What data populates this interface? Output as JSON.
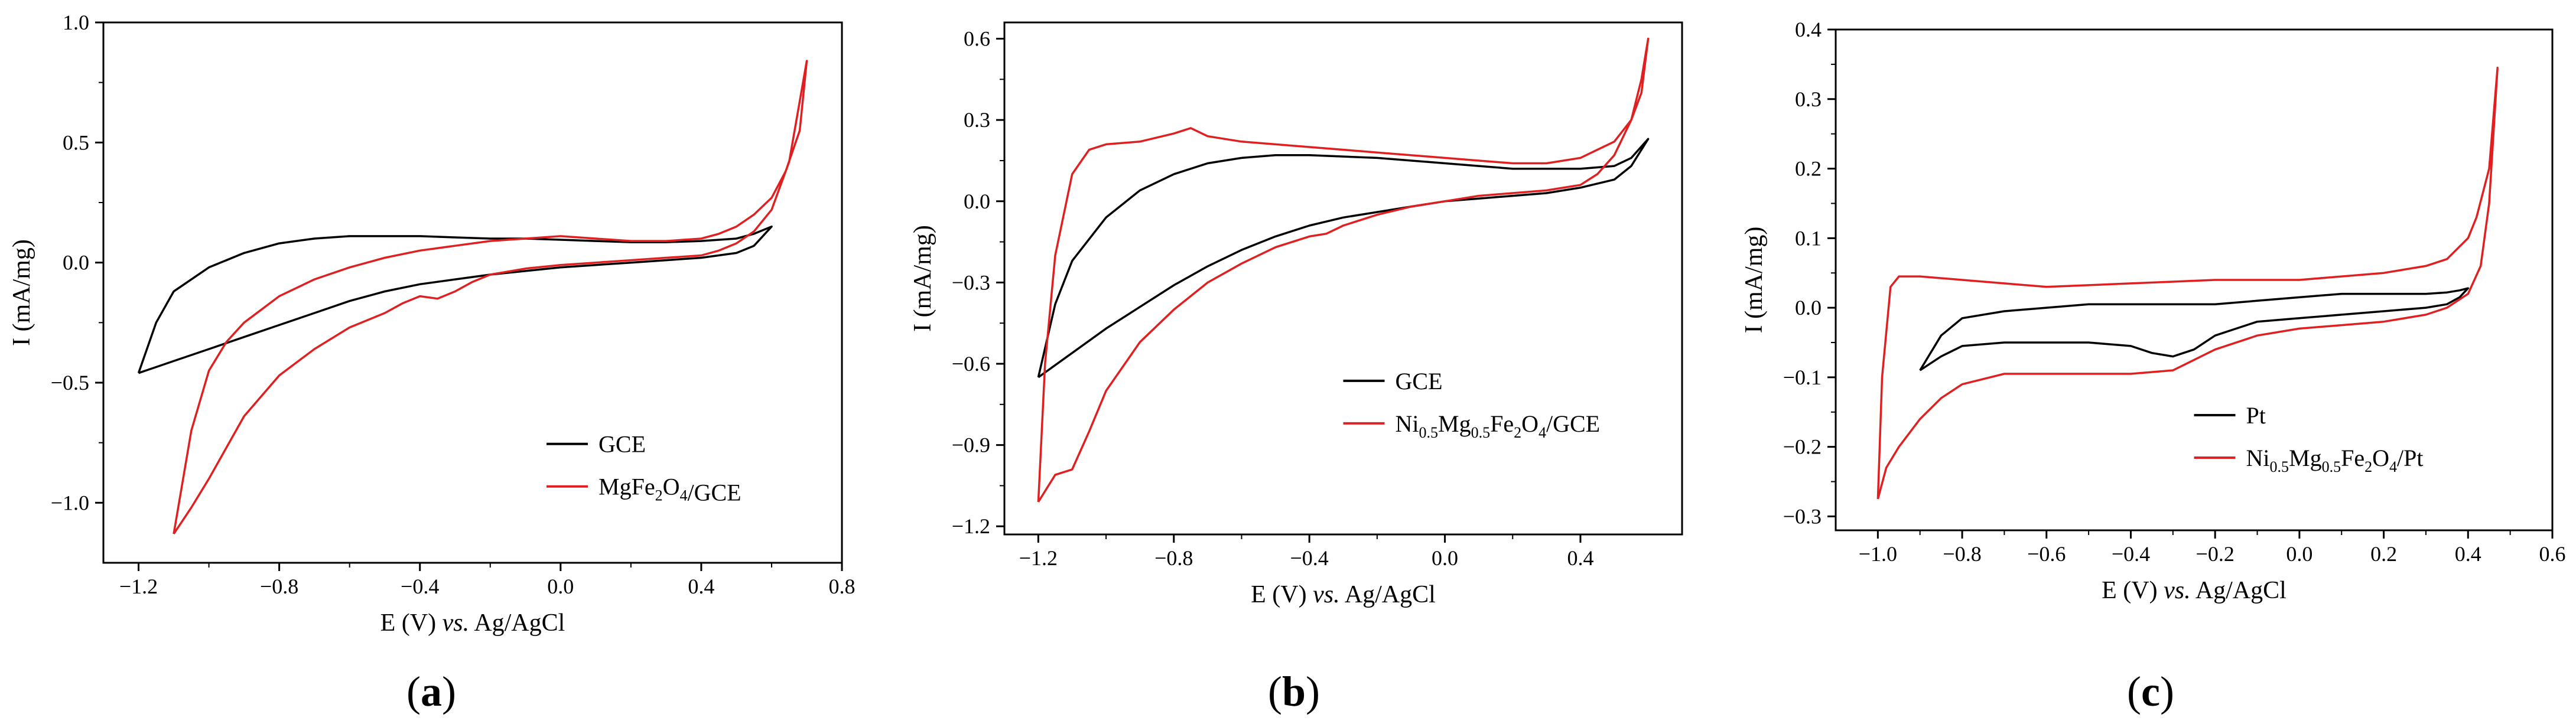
{
  "figure": {
    "colors": {
      "background": "#ffffff",
      "axis": "#000000",
      "GCE": "#000000",
      "modified": "#e02020"
    }
  },
  "chart_data": [
    {
      "type": "line",
      "panel_label": "a",
      "xlabel": "E (V) vs. Ag/AgCl",
      "ylabel": "I (mA/mg)",
      "xlim": [
        -1.3,
        0.8
      ],
      "ylim": [
        -1.25,
        1.0
      ],
      "xticks": [
        -1.2,
        -0.8,
        -0.4,
        0.0,
        0.4,
        0.8
      ],
      "xtick_labels": [
        "−1.2",
        "−0.8",
        "−0.4",
        "0.0",
        "0.4",
        "0.8"
      ],
      "yticks": [
        -1.0,
        -0.5,
        0.0,
        0.5,
        1.0
      ],
      "ytick_labels": [
        "−1.0",
        "−0.5",
        "0.0",
        "0.5",
        "1.0"
      ],
      "legend_position": "lower-right",
      "series": [
        {
          "name": "GCE",
          "legend": {
            "base": "GCE"
          },
          "color": "#000000",
          "x": [
            -1.2,
            -1.1,
            -1.0,
            -0.9,
            -0.8,
            -0.7,
            -0.6,
            -0.5,
            -0.4,
            -0.3,
            -0.2,
            -0.1,
            0.0,
            0.1,
            0.2,
            0.3,
            0.4,
            0.5,
            0.55,
            0.6,
            0.6,
            0.55,
            0.5,
            0.4,
            0.3,
            0.2,
            0.1,
            0.0,
            -0.1,
            -0.2,
            -0.3,
            -0.4,
            -0.5,
            -0.6,
            -0.7,
            -0.8,
            -0.9,
            -1.0,
            -1.1,
            -1.15,
            -1.2
          ],
          "y": [
            -0.46,
            -0.41,
            -0.36,
            -0.31,
            -0.26,
            -0.21,
            -0.16,
            -0.12,
            -0.09,
            -0.07,
            -0.05,
            -0.035,
            -0.02,
            -0.01,
            0.0,
            0.01,
            0.02,
            0.04,
            0.07,
            0.15,
            0.15,
            0.12,
            0.1,
            0.09,
            0.085,
            0.085,
            0.09,
            0.095,
            0.1,
            0.1,
            0.105,
            0.11,
            0.11,
            0.11,
            0.1,
            0.08,
            0.04,
            -0.02,
            -0.12,
            -0.25,
            -0.46
          ]
        },
        {
          "name": "MgFe2O4/GCE",
          "legend": {
            "base": "MgFe",
            "sub1": "2",
            "mid": "O",
            "sub2": "4",
            "rest": "/GCE"
          },
          "color": "#e02020",
          "x": [
            -1.1,
            -1.05,
            -1.0,
            -0.95,
            -0.9,
            -0.8,
            -0.7,
            -0.6,
            -0.5,
            -0.45,
            -0.4,
            -0.35,
            -0.3,
            -0.25,
            -0.2,
            -0.1,
            0.0,
            0.1,
            0.2,
            0.3,
            0.4,
            0.45,
            0.5,
            0.55,
            0.6,
            0.65,
            0.7,
            0.68,
            0.64,
            0.6,
            0.55,
            0.5,
            0.45,
            0.4,
            0.3,
            0.2,
            0.1,
            0.0,
            -0.1,
            -0.2,
            -0.3,
            -0.4,
            -0.5,
            -0.6,
            -0.7,
            -0.8,
            -0.9,
            -0.95,
            -1.0,
            -1.05,
            -1.1
          ],
          "y": [
            -1.13,
            -1.02,
            -0.9,
            -0.77,
            -0.64,
            -0.47,
            -0.36,
            -0.27,
            -0.21,
            -0.17,
            -0.14,
            -0.15,
            -0.12,
            -0.08,
            -0.05,
            -0.025,
            -0.01,
            0.0,
            0.01,
            0.02,
            0.03,
            0.05,
            0.08,
            0.13,
            0.22,
            0.42,
            0.84,
            0.55,
            0.38,
            0.27,
            0.2,
            0.15,
            0.12,
            0.1,
            0.09,
            0.09,
            0.1,
            0.11,
            0.1,
            0.09,
            0.07,
            0.05,
            0.02,
            -0.02,
            -0.07,
            -0.14,
            -0.25,
            -0.33,
            -0.45,
            -0.7,
            -1.13
          ]
        }
      ]
    },
    {
      "type": "line",
      "panel_label": "b",
      "xlabel": "E (V) vs. Ag/AgCl",
      "ylabel": "I (mA/mg)",
      "xlim": [
        -1.3,
        0.7
      ],
      "ylim": [
        -1.23,
        0.66
      ],
      "xticks": [
        -1.2,
        -0.8,
        -0.4,
        0.0,
        0.4
      ],
      "xtick_labels": [
        "−1.2",
        "−0.8",
        "−0.4",
        "0.0",
        "0.4"
      ],
      "yticks": [
        -1.2,
        -0.9,
        -0.6,
        -0.3,
        0.0,
        0.3,
        0.6
      ],
      "ytick_labels": [
        "−1.2",
        "−0.9",
        "−0.6",
        "−0.3",
        "0.0",
        "0.3",
        "0.6"
      ],
      "legend_position": "lower-right",
      "series": [
        {
          "name": "GCE",
          "legend": {
            "base": "GCE"
          },
          "color": "#000000",
          "x": [
            -1.2,
            -1.1,
            -1.0,
            -0.9,
            -0.8,
            -0.7,
            -0.6,
            -0.5,
            -0.4,
            -0.3,
            -0.2,
            -0.1,
            0.0,
            0.1,
            0.2,
            0.3,
            0.4,
            0.5,
            0.55,
            0.6,
            0.6,
            0.55,
            0.5,
            0.4,
            0.3,
            0.2,
            0.1,
            0.0,
            -0.2,
            -0.4,
            -0.5,
            -0.6,
            -0.7,
            -0.8,
            -0.9,
            -1.0,
            -1.1,
            -1.15,
            -1.2
          ],
          "y": [
            -0.65,
            -0.56,
            -0.47,
            -0.39,
            -0.31,
            -0.24,
            -0.18,
            -0.13,
            -0.09,
            -0.06,
            -0.04,
            -0.02,
            0.0,
            0.01,
            0.02,
            0.03,
            0.05,
            0.08,
            0.13,
            0.23,
            0.23,
            0.16,
            0.13,
            0.12,
            0.12,
            0.12,
            0.13,
            0.14,
            0.16,
            0.17,
            0.17,
            0.16,
            0.14,
            0.1,
            0.04,
            -0.06,
            -0.22,
            -0.38,
            -0.65
          ]
        },
        {
          "name": "Ni0.5Mg0.5Fe2O4/GCE",
          "legend": {
            "base": "Ni",
            "sub1": "0.5",
            "mid": "Mg",
            "sub2": "0.5",
            "mid2": "Fe",
            "sub3": "2",
            "mid3": "O",
            "sub4": "4",
            "rest": "/GCE"
          },
          "color": "#e02020",
          "x": [
            -1.2,
            -1.15,
            -1.1,
            -1.05,
            -1.0,
            -0.9,
            -0.8,
            -0.7,
            -0.6,
            -0.5,
            -0.4,
            -0.35,
            -0.3,
            -0.2,
            -0.1,
            0.0,
            0.1,
            0.2,
            0.3,
            0.4,
            0.45,
            0.5,
            0.55,
            0.58,
            0.6,
            0.58,
            0.55,
            0.5,
            0.4,
            0.3,
            0.2,
            0.1,
            0.0,
            -0.2,
            -0.4,
            -0.6,
            -0.7,
            -0.75,
            -0.8,
            -0.9,
            -1.0,
            -1.05,
            -1.1,
            -1.15,
            -1.18,
            -1.2
          ],
          "y": [
            -1.11,
            -1.01,
            -0.99,
            -0.85,
            -0.7,
            -0.52,
            -0.4,
            -0.3,
            -0.23,
            -0.17,
            -0.13,
            -0.12,
            -0.09,
            -0.05,
            -0.02,
            0.0,
            0.02,
            0.03,
            0.04,
            0.06,
            0.1,
            0.17,
            0.3,
            0.45,
            0.6,
            0.4,
            0.3,
            0.22,
            0.16,
            0.14,
            0.14,
            0.15,
            0.16,
            0.18,
            0.2,
            0.22,
            0.24,
            0.27,
            0.25,
            0.22,
            0.21,
            0.19,
            0.1,
            -0.2,
            -0.6,
            -1.11
          ]
        }
      ]
    },
    {
      "type": "line",
      "panel_label": "c",
      "xlabel": "E (V) vs. Ag/AgCl",
      "ylabel": "I (mA/mg)",
      "xlim": [
        -1.1,
        0.6
      ],
      "ylim": [
        -0.32,
        0.4
      ],
      "xticks": [
        -1.0,
        -0.8,
        -0.6,
        -0.4,
        -0.2,
        0.0,
        0.2,
        0.4,
        0.6
      ],
      "xtick_labels": [
        "−1.0",
        "−0.8",
        "−0.6",
        "−0.4",
        "−0.2",
        "0.0",
        "0.2",
        "0.4",
        "0.6"
      ],
      "yticks": [
        -0.3,
        -0.2,
        -0.1,
        0.0,
        0.1,
        0.2,
        0.3,
        0.4
      ],
      "ytick_labels": [
        "−0.3",
        "−0.2",
        "−0.1",
        "0.0",
        "0.1",
        "0.2",
        "0.3",
        "0.4"
      ],
      "legend_position": "lower-center",
      "series": [
        {
          "name": "Pt",
          "legend": {
            "base": "Pt"
          },
          "color": "#000000",
          "x": [
            -0.9,
            -0.85,
            -0.8,
            -0.7,
            -0.6,
            -0.5,
            -0.4,
            -0.35,
            -0.3,
            -0.25,
            -0.2,
            -0.15,
            -0.1,
            0.0,
            0.1,
            0.2,
            0.3,
            0.35,
            0.38,
            0.4,
            0.38,
            0.35,
            0.3,
            0.2,
            0.1,
            0.0,
            -0.1,
            -0.2,
            -0.3,
            -0.4,
            -0.5,
            -0.6,
            -0.7,
            -0.8,
            -0.85,
            -0.9
          ],
          "y": [
            -0.09,
            -0.07,
            -0.055,
            -0.05,
            -0.05,
            -0.05,
            -0.055,
            -0.065,
            -0.07,
            -0.06,
            -0.04,
            -0.03,
            -0.02,
            -0.015,
            -0.01,
            -0.005,
            0.0,
            0.005,
            0.015,
            0.028,
            0.025,
            0.022,
            0.02,
            0.02,
            0.02,
            0.015,
            0.01,
            0.005,
            0.005,
            0.005,
            0.005,
            0.0,
            -0.005,
            -0.015,
            -0.04,
            -0.09
          ]
        },
        {
          "name": "Ni0.5Mg0.5Fe2O4/Pt",
          "legend": {
            "base": "Ni",
            "sub1": "0.5",
            "mid": "Mg",
            "sub2": "0.5",
            "mid2": "Fe",
            "sub3": "2",
            "mid3": "O",
            "sub4": "4",
            "rest": "/Pt"
          },
          "color": "#e02020",
          "x": [
            -1.0,
            -0.98,
            -0.95,
            -0.9,
            -0.85,
            -0.8,
            -0.7,
            -0.6,
            -0.5,
            -0.4,
            -0.3,
            -0.2,
            -0.1,
            0.0,
            0.1,
            0.2,
            0.3,
            0.35,
            0.4,
            0.43,
            0.45,
            0.47,
            0.45,
            0.42,
            0.4,
            0.35,
            0.3,
            0.2,
            0.1,
            0.0,
            -0.2,
            -0.4,
            -0.6,
            -0.7,
            -0.8,
            -0.9,
            -0.95,
            -0.97,
            -0.99,
            -1.0
          ],
          "y": [
            -0.275,
            -0.23,
            -0.2,
            -0.16,
            -0.13,
            -0.11,
            -0.095,
            -0.095,
            -0.095,
            -0.095,
            -0.09,
            -0.06,
            -0.04,
            -0.03,
            -0.025,
            -0.02,
            -0.01,
            0.0,
            0.02,
            0.06,
            0.15,
            0.345,
            0.2,
            0.13,
            0.1,
            0.07,
            0.06,
            0.05,
            0.045,
            0.04,
            0.04,
            0.035,
            0.03,
            0.035,
            0.04,
            0.045,
            0.045,
            0.03,
            -0.1,
            -0.275
          ]
        }
      ]
    }
  ]
}
